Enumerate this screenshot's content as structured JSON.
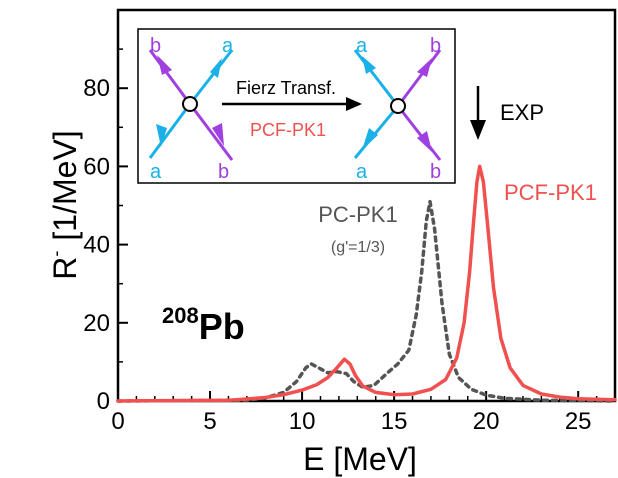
{
  "chart_data": {
    "type": "line",
    "xlabel": "E [MeV]",
    "ylabel": "R",
    "ylabel_sup": "-",
    "ylabel_unit": "[1/MeV]",
    "xlim": [
      0,
      27
    ],
    "ylim": [
      0,
      100
    ],
    "xticks": [
      "0",
      "5",
      "10",
      "15",
      "20",
      "25"
    ],
    "yticks": [
      "0",
      "20",
      "40",
      "60",
      "80"
    ],
    "grid": false,
    "series": [
      {
        "name": "PCF-PK1",
        "color": "#f0504e",
        "style": "solid",
        "points": [
          [
            0,
            0
          ],
          [
            6,
            0.2
          ],
          [
            7,
            0.5
          ],
          [
            8,
            0.9
          ],
          [
            9,
            1.6
          ],
          [
            10,
            2.8
          ],
          [
            10.8,
            4.2
          ],
          [
            11.4,
            6.0
          ],
          [
            11.9,
            8.5
          ],
          [
            12.3,
            10.7
          ],
          [
            12.6,
            9.5
          ],
          [
            12.9,
            6.5
          ],
          [
            13.3,
            3.8
          ],
          [
            14,
            2.2
          ],
          [
            15,
            1.6
          ],
          [
            16,
            1.8
          ],
          [
            17,
            3.0
          ],
          [
            17.8,
            5.5
          ],
          [
            18.4,
            11
          ],
          [
            18.8,
            20
          ],
          [
            19.1,
            33
          ],
          [
            19.3,
            45
          ],
          [
            19.5,
            56
          ],
          [
            19.65,
            60
          ],
          [
            19.85,
            56
          ],
          [
            20.1,
            44
          ],
          [
            20.4,
            29
          ],
          [
            20.8,
            16
          ],
          [
            21.3,
            8.5
          ],
          [
            22,
            4.0
          ],
          [
            23,
            1.8
          ],
          [
            24,
            1.0
          ],
          [
            25,
            0.6
          ],
          [
            27,
            0.3
          ]
        ]
      },
      {
        "name": "PC-PK1",
        "name_note": "(g'=1/3)",
        "color": "#555555",
        "style": "dotted",
        "points": [
          [
            0,
            0
          ],
          [
            7,
            0.2
          ],
          [
            8,
            0.8
          ],
          [
            9,
            2.2
          ],
          [
            9.7,
            5
          ],
          [
            10.2,
            8.5
          ],
          [
            10.5,
            9.5
          ],
          [
            10.9,
            8.5
          ],
          [
            11.4,
            7.2
          ],
          [
            11.9,
            7.5
          ],
          [
            12.4,
            7.0
          ],
          [
            12.8,
            5.0
          ],
          [
            13.3,
            3.5
          ],
          [
            13.9,
            4.0
          ],
          [
            14.6,
            7.0
          ],
          [
            15.2,
            9.5
          ],
          [
            15.8,
            13
          ],
          [
            16.2,
            22
          ],
          [
            16.5,
            33
          ],
          [
            16.75,
            46
          ],
          [
            16.95,
            51
          ],
          [
            17.2,
            44
          ],
          [
            17.6,
            25
          ],
          [
            18,
            12
          ],
          [
            18.5,
            6
          ],
          [
            19.2,
            3
          ],
          [
            20,
            1.5
          ],
          [
            21,
            0.7
          ],
          [
            23,
            0.2
          ],
          [
            27,
            0
          ]
        ]
      }
    ],
    "annotations": {
      "nucleus_mass": "208",
      "nucleus_symbol": "Pb",
      "exp_label": "EXP",
      "exp_arrow_x": 19.2,
      "pcfpk1_label": "PCF-PK1",
      "pcpk1_label": "PC-PK1",
      "pcpk1_note": "(g'=1/3)"
    },
    "inset": {
      "transform_label": "Fierz Transf.",
      "model_label": "PCF-PK1",
      "label_a": "a",
      "label_b": "b",
      "color_a": "#1ab0e8",
      "color_b": "#a040e0",
      "color_model": "#f0504e"
    }
  }
}
